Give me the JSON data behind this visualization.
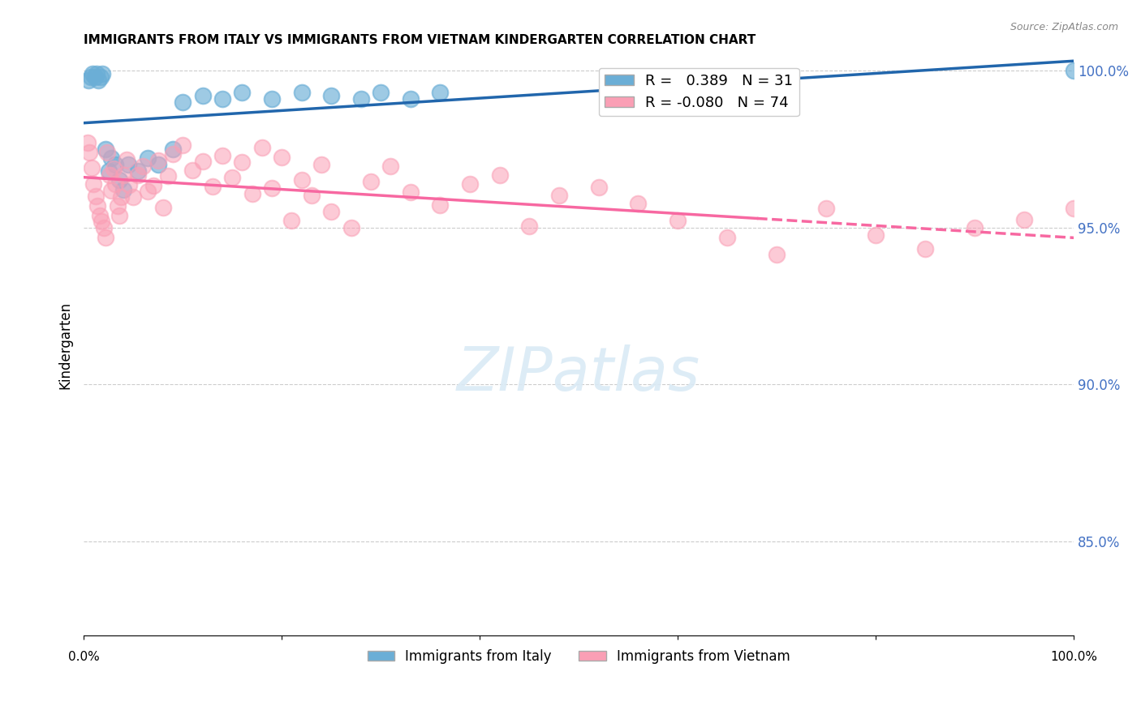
{
  "title": "IMMIGRANTS FROM ITALY VS IMMIGRANTS FROM VIETNAM KINDERGARTEN CORRELATION CHART",
  "source": "Source: ZipAtlas.com",
  "ylabel": "Kindergarten",
  "xlim": [
    0.0,
    1.0
  ],
  "ylim": [
    0.82,
    1.005
  ],
  "yticks": [
    0.85,
    0.9,
    0.95,
    1.0
  ],
  "ytick_labels": [
    "85.0%",
    "90.0%",
    "95.0%",
    "100.0%"
  ],
  "legend_italy": "R =   0.389   N = 31",
  "legend_vietnam": "R = -0.080   N = 74",
  "italy_color": "#6baed6",
  "vietnam_color": "#fa9fb5",
  "italy_line_color": "#2166ac",
  "vietnam_line_color": "#f768a1",
  "background_color": "#ffffff"
}
